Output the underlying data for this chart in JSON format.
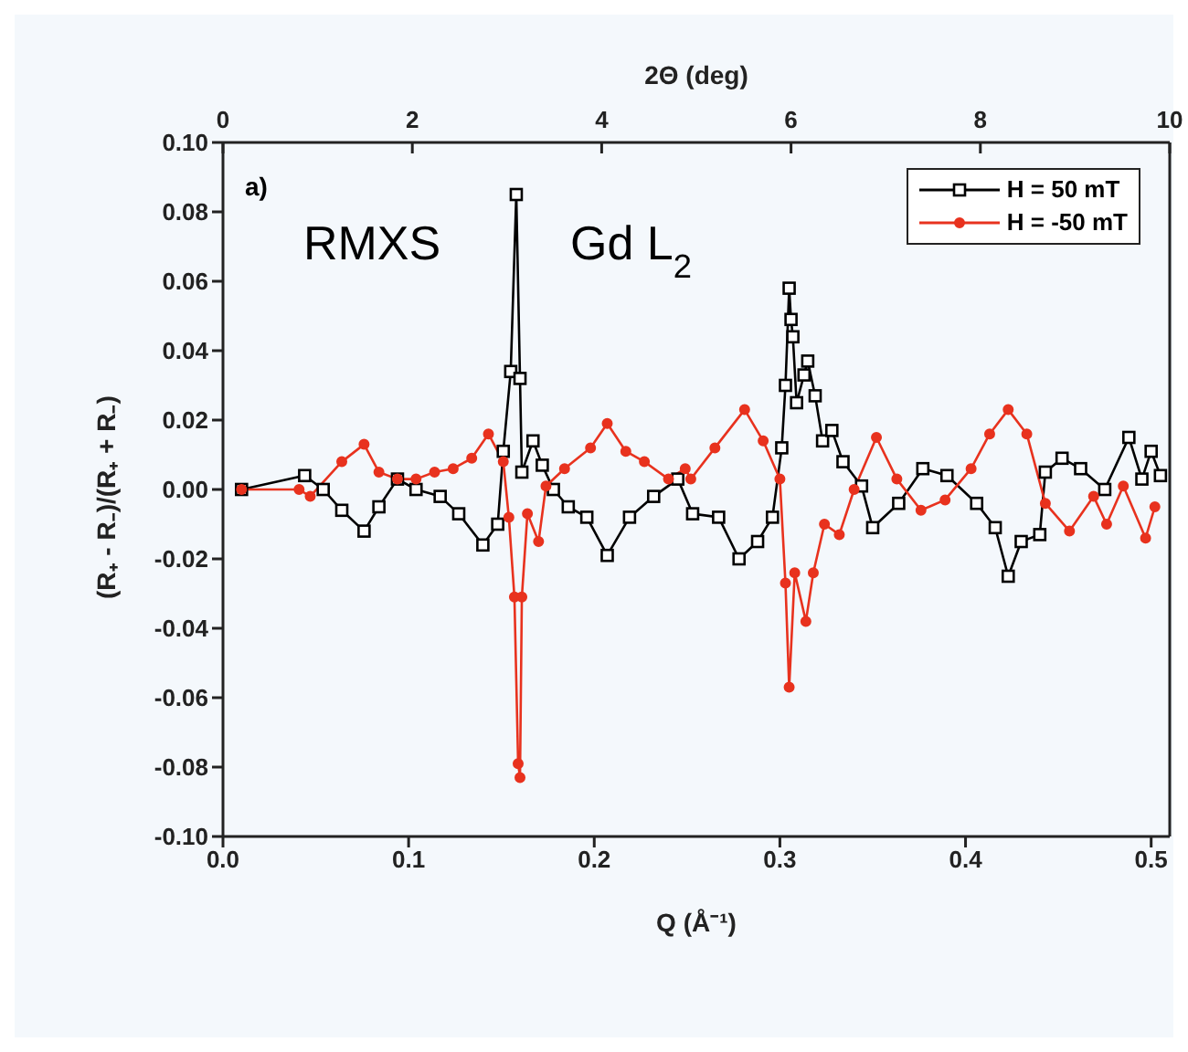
{
  "chart_data": {
    "type": "line",
    "xlabel": "Q (Å⁻¹)",
    "ylabel": "(R₊ - R₋)/(R₊ + R₋)",
    "x2label": "2Θ (deg)",
    "annotations": [
      "a)",
      "RMXS",
      "Gd L$_{2}$"
    ],
    "xlim": [
      0,
      0.51
    ],
    "xticks": [
      {
        "value": 0,
        "label": "0.0"
      },
      0.1,
      0.2,
      0.3,
      0.4,
      0.5
    ],
    "x2lim": [
      0,
      10
    ],
    "x2ticks": [
      0,
      2,
      4,
      6,
      8,
      10
    ],
    "ylim": [
      -0.1,
      0.1
    ],
    "yticks": [
      {
        "value": -0.1,
        "label": "-0.10"
      },
      {
        "value": -0.08,
        "label": "-0.08"
      },
      {
        "value": -0.06,
        "label": "-0.06"
      },
      {
        "value": -0.04,
        "label": "-0.04"
      },
      {
        "value": -0.02,
        "label": "-0.02"
      },
      {
        "value": 0,
        "label": "0.00"
      },
      {
        "value": 0.02,
        "label": "0.02"
      },
      {
        "value": 0.04,
        "label": "0.04"
      },
      {
        "value": 0.06,
        "label": "0.06"
      },
      {
        "value": 0.08,
        "label": "0.08"
      },
      {
        "value": 0.1,
        "label": "0.10"
      }
    ],
    "grid": false,
    "legend": "top right",
    "line_style": "solid",
    "series": [
      {
        "name": "H = 50 mT",
        "color": "#000000",
        "marker": "square",
        "x": [
          0.01,
          0.044,
          0.054,
          0.064,
          0.076,
          0.084,
          0.094,
          0.104,
          0.117,
          0.127,
          0.14,
          0.148,
          0.151,
          0.155,
          0.158,
          0.16,
          0.161,
          0.167,
          0.172,
          0.178,
          0.186,
          0.196,
          0.207,
          0.219,
          0.232,
          0.245,
          0.253,
          0.267,
          0.278,
          0.288,
          0.296,
          0.301,
          0.303,
          0.305,
          0.306,
          0.307,
          0.309,
          0.313,
          0.315,
          0.319,
          0.323,
          0.328,
          0.334,
          0.344,
          0.35,
          0.364,
          0.377,
          0.39,
          0.406,
          0.416,
          0.423,
          0.43,
          0.44,
          0.443,
          0.452,
          0.462,
          0.475,
          0.488,
          0.495,
          0.5,
          0.505
        ],
        "values": [
          0,
          0.004,
          0,
          -0.006,
          -0.012,
          -0.005,
          0.003,
          0,
          -0.002,
          -0.007,
          -0.016,
          -0.01,
          0.011,
          0.034,
          0.085,
          0.032,
          0.005,
          0.014,
          0.007,
          0,
          -0.005,
          -0.008,
          -0.019,
          -0.008,
          -0.002,
          0.003,
          -0.007,
          -0.008,
          -0.02,
          -0.015,
          -0.008,
          0.012,
          0.03,
          0.058,
          0.049,
          0.044,
          0.025,
          0.033,
          0.037,
          0.027,
          0.014,
          0.017,
          0.008,
          0.001,
          -0.011,
          -0.004,
          0.006,
          0.004,
          -0.004,
          -0.011,
          -0.025,
          -0.015,
          -0.013,
          0.005,
          0.009,
          0.006,
          0,
          0.015,
          0.003,
          0.011,
          0.004
        ]
      },
      {
        "name": "H = -50 mT",
        "color": "#e8321e",
        "marker": "circle",
        "x": [
          0.01,
          0.041,
          0.047,
          0.064,
          0.076,
          0.084,
          0.094,
          0.104,
          0.114,
          0.124,
          0.134,
          0.143,
          0.151,
          0.154,
          0.157,
          0.159,
          0.16,
          0.161,
          0.164,
          0.17,
          0.174,
          0.184,
          0.198,
          0.207,
          0.217,
          0.227,
          0.24,
          0.249,
          0.252,
          0.265,
          0.281,
          0.291,
          0.3,
          0.303,
          0.305,
          0.308,
          0.314,
          0.318,
          0.324,
          0.332,
          0.34,
          0.352,
          0.363,
          0.376,
          0.389,
          0.403,
          0.413,
          0.423,
          0.433,
          0.443,
          0.456,
          0.469,
          0.476,
          0.485,
          0.497,
          0.502
        ],
        "values": [
          0,
          0,
          -0.002,
          0.008,
          0.013,
          0.005,
          0.003,
          0.003,
          0.005,
          0.006,
          0.009,
          0.016,
          0.008,
          -0.008,
          -0.031,
          -0.079,
          -0.083,
          -0.031,
          -0.007,
          -0.015,
          0.001,
          0.006,
          0.012,
          0.019,
          0.011,
          0.008,
          0.003,
          0.006,
          0.003,
          0.012,
          0.023,
          0.014,
          0.003,
          -0.027,
          -0.057,
          -0.024,
          -0.038,
          -0.024,
          -0.01,
          -0.013,
          0,
          0.015,
          0.003,
          -0.006,
          -0.003,
          0.006,
          0.016,
          0.023,
          0.016,
          -0.004,
          -0.012,
          -0.002,
          -0.01,
          0.001,
          -0.014,
          -0.005
        ]
      }
    ]
  }
}
